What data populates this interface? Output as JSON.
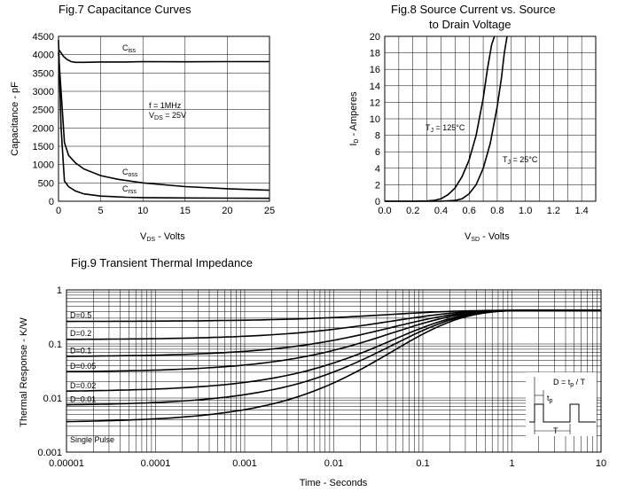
{
  "chart_data": [
    {
      "id": "fig7",
      "type": "line",
      "title": "Fig.7  Capacitance Curves",
      "xlabel": "V_DS - Volts",
      "ylabel": "Capacitance - pF",
      "xlim": [
        0,
        25
      ],
      "ylim": [
        0,
        4500
      ],
      "x_ticks": [
        0,
        5,
        10,
        15,
        20,
        25
      ],
      "y_ticks": [
        0,
        500,
        1000,
        1500,
        2000,
        2500,
        3000,
        3500,
        4000,
        4500
      ],
      "grid": true,
      "annotations": [
        "f = 1MHz",
        "V_DS = 25V"
      ],
      "series": [
        {
          "name": "C_iss",
          "label_main": "C",
          "label_sub": "iss",
          "x": [
            0,
            0.3,
            0.6,
            1.0,
            1.5,
            2,
            3,
            5,
            8,
            10,
            15,
            20,
            25
          ],
          "y": [
            4150,
            4050,
            3950,
            3870,
            3810,
            3790,
            3790,
            3800,
            3800,
            3810,
            3805,
            3810,
            3810
          ]
        },
        {
          "name": "C_oss",
          "label_main": "C",
          "label_sub": "oss",
          "x": [
            0,
            0.3,
            0.7,
            1.2,
            2,
            3,
            5,
            7,
            10,
            15,
            20,
            25
          ],
          "y": [
            4050,
            3000,
            1600,
            1250,
            1050,
            880,
            700,
            600,
            500,
            400,
            340,
            300
          ]
        },
        {
          "name": "C_rss",
          "label_main": "C",
          "label_sub": "rss",
          "x": [
            0,
            0.3,
            0.7,
            1.2,
            2,
            3,
            5,
            8,
            10,
            15,
            20,
            25
          ],
          "y": [
            4400,
            2000,
            550,
            400,
            280,
            200,
            140,
            110,
            100,
            90,
            85,
            80
          ]
        }
      ]
    },
    {
      "id": "fig8",
      "type": "line",
      "title_line1": "Fig.8  Source Current vs. Source",
      "title_line2": "to Drain Voltage",
      "xlabel": "V_SD -  Volts",
      "ylabel": "I_D - Amperes",
      "xlim": [
        0,
        1.5
      ],
      "ylim": [
        0,
        20
      ],
      "x_ticks": [
        "0.0",
        "0.2",
        "0.4",
        "0.6",
        "0.8",
        "1.0",
        "1.2",
        "1.4"
      ],
      "y_ticks": [
        0,
        2,
        4,
        6,
        8,
        10,
        12,
        14,
        16,
        18,
        20
      ],
      "grid": true,
      "series": [
        {
          "name": "T_J = 125°C",
          "label_main": "T",
          "label_sub": "J",
          "label_tail": " = 125°C",
          "x": [
            0.0,
            0.2,
            0.3,
            0.35,
            0.4,
            0.45,
            0.5,
            0.55,
            0.6,
            0.65,
            0.7,
            0.73,
            0.76,
            0.78
          ],
          "y": [
            0.0,
            0.0,
            0.03,
            0.1,
            0.3,
            0.8,
            1.6,
            3.0,
            5.0,
            8.0,
            12.5,
            16.0,
            19.0,
            20.0
          ]
        },
        {
          "name": "T_J = 25°C",
          "label_main": "T",
          "label_sub": "J",
          "label_tail": " = 25°C",
          "x": [
            0.0,
            0.4,
            0.45,
            0.5,
            0.55,
            0.6,
            0.65,
            0.7,
            0.75,
            0.8,
            0.83,
            0.85,
            0.87
          ],
          "y": [
            0.0,
            0.0,
            0.05,
            0.1,
            0.3,
            0.9,
            2.0,
            4.0,
            7.0,
            11.5,
            15.0,
            18.0,
            20.0
          ]
        }
      ]
    },
    {
      "id": "fig9",
      "type": "line",
      "title": "Fig.9  Transient Thermal Impedance",
      "xlabel": "Time - Seconds",
      "ylabel": "Thermal Response - K/W",
      "xscale": "log",
      "yscale": "log",
      "xlim": [
        1e-05,
        10
      ],
      "ylim": [
        0.001,
        1
      ],
      "x_ticks": [
        "0.00001",
        "0.0001",
        "0.001",
        "0.01",
        "0.1",
        "1",
        "10"
      ],
      "y_ticks": [
        "0.001",
        "0.01",
        "0.1",
        "1"
      ],
      "grid": true,
      "steady_state_value": 0.42,
      "formula_prefix": "D = t",
      "formula_sub": "p",
      "formula_suffix": " / T",
      "inset_labels": {
        "tp_main": "t",
        "tp_sub": "p",
        "period": "T"
      },
      "series": [
        {
          "name": "D=0.5",
          "label": "D=0.5",
          "start": 0.26
        },
        {
          "name": "D=0.2",
          "label": "D=0.2",
          "start": 0.12
        },
        {
          "name": "D=0.1",
          "label": "D=0.1",
          "start": 0.058
        },
        {
          "name": "D=0.05",
          "label": "D=0.05",
          "start": 0.03
        },
        {
          "name": "D=0.02",
          "label": "D=0.02",
          "start": 0.013
        },
        {
          "name": "D=0.01",
          "label": "D=0.01",
          "start": 0.0072
        },
        {
          "name": "Single Pulse",
          "label": "Single Pulse",
          "start": 0.0035
        }
      ]
    }
  ]
}
